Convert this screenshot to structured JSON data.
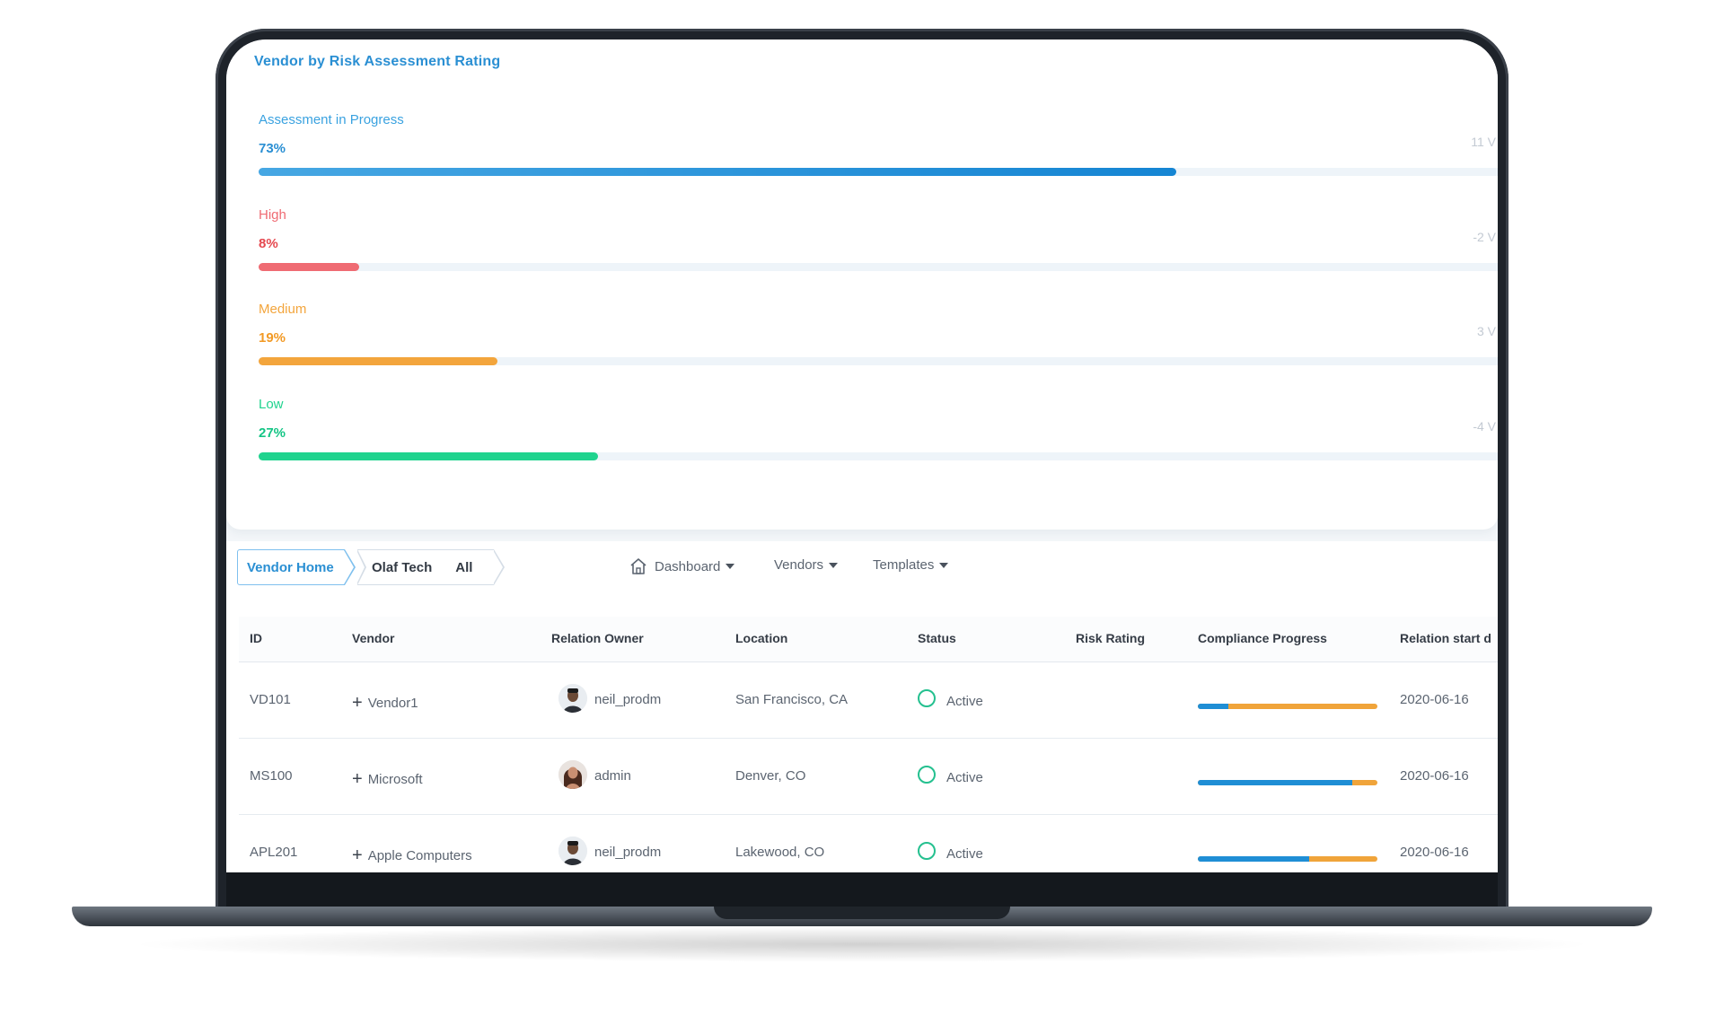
{
  "colors": {
    "accent": "#2a8fd3",
    "progress_blue": "#1f8ed5",
    "high": "#ef6b73",
    "medium": "#f3a53c",
    "low": "#1fd38e",
    "status_active": "#24c08f"
  },
  "risk_card": {
    "title": "Vendor by Risk Assessment Rating",
    "rows": [
      {
        "label": "Assessment in Progress",
        "percent_text": "73%",
        "percent": 73,
        "count_text": "11 V",
        "color": "#2a8fd3"
      },
      {
        "label": "High",
        "percent_text": "8%",
        "percent": 8,
        "count_text": "-2 V",
        "color": "#ef6b73"
      },
      {
        "label": "Medium",
        "percent_text": "19%",
        "percent": 19,
        "count_text": "3 V",
        "color": "#f3a53c"
      },
      {
        "label": "Low",
        "percent_text": "27%",
        "percent": 27,
        "count_text": "-4 V",
        "color": "#1fd38e"
      }
    ]
  },
  "breadcrumb": {
    "home": "Vendor Home",
    "vendor": "Olaf Tech",
    "filter": "All"
  },
  "menu": {
    "dashboard": "Dashboard",
    "vendors": "Vendors",
    "templates": "Templates",
    "dashboard_icon": "home-icon"
  },
  "table": {
    "columns": [
      "ID",
      "Vendor",
      "Relation Owner",
      "Location",
      "Status",
      "Risk Rating",
      "Compliance Progress",
      "Relation start d"
    ],
    "rows": [
      {
        "id": "VD101",
        "vendor": "Vendor1",
        "owner": "neil_prodm",
        "location": "San Francisco, CA",
        "status": "Active",
        "risk": "",
        "progress": 0.17,
        "start": "2020-06-16"
      },
      {
        "id": "MS100",
        "vendor": "Microsoft",
        "owner": "admin",
        "location": "Denver, CO",
        "status": "Active",
        "risk": "",
        "progress": 0.86,
        "start": "2020-06-16"
      },
      {
        "id": "APL201",
        "vendor": "Apple Computers",
        "owner": "neil_prodm",
        "location": "Lakewood, CO",
        "status": "Active",
        "risk": "",
        "progress": 0.62,
        "start": "2020-06-16"
      }
    ]
  }
}
